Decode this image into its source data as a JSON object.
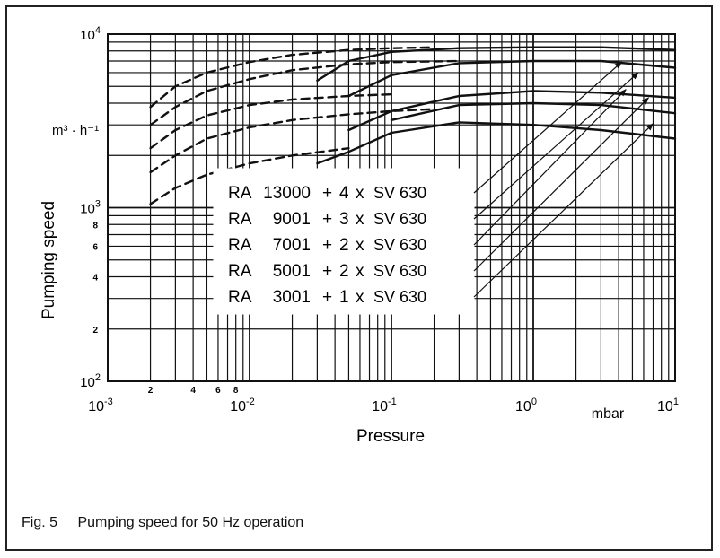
{
  "chart_data": {
    "type": "line",
    "title": "",
    "xscale": "log",
    "yscale": "log",
    "xlim": [
      0.001,
      10
    ],
    "ylim": [
      100,
      10000
    ],
    "xlabel": "Pressure",
    "x_unit": "mbar",
    "ylabel": "Pumping speed",
    "y_unit": "m³ · h⁻¹",
    "grid": true,
    "x_major_ticks": [
      {
        "value": 0.001,
        "base": "10",
        "exp": "-3"
      },
      {
        "value": 0.01,
        "base": "10",
        "exp": "-2"
      },
      {
        "value": 0.1,
        "base": "10",
        "exp": "-1"
      },
      {
        "value": 1,
        "base": "10",
        "exp": "0"
      },
      {
        "value": 10,
        "base": "10",
        "exp": "1"
      }
    ],
    "x_minor_tick_labels": [
      {
        "value": 0.002,
        "label": "2"
      },
      {
        "value": 0.004,
        "label": "4"
      },
      {
        "value": 0.006,
        "label": "6"
      },
      {
        "value": 0.008,
        "label": "8"
      }
    ],
    "y_major_ticks": [
      {
        "value": 100,
        "base": "10",
        "exp": "2"
      },
      {
        "value": 1000,
        "base": "10",
        "exp": "3"
      },
      {
        "value": 10000,
        "base": "10",
        "exp": "4"
      }
    ],
    "y_minor_tick_labels": [
      {
        "value": 200,
        "label": "2"
      },
      {
        "value": 400,
        "label": "4"
      },
      {
        "value": 600,
        "label": "6"
      },
      {
        "value": 800,
        "label": "8"
      }
    ],
    "legend": {
      "placement": "center",
      "rows": [
        {
          "pump": "RA",
          "model": "13000",
          "count": "4",
          "booster": "SV 630"
        },
        {
          "pump": "RA",
          "model": "9001",
          "count": "3",
          "booster": "SV 630"
        },
        {
          "pump": "RA",
          "model": "7001",
          "count": "2",
          "booster": "SV 630"
        },
        {
          "pump": "RA",
          "model": "5001",
          "count": "2",
          "booster": "SV 630"
        },
        {
          "pump": "RA",
          "model": "3001",
          "count": "1",
          "booster": "SV 630"
        }
      ]
    },
    "series": [
      {
        "name": "RA 13000 + 4 x SV 630",
        "solid": [
          [
            0.03,
            5400
          ],
          [
            0.05,
            7000
          ],
          [
            0.1,
            7900
          ],
          [
            0.3,
            8300
          ],
          [
            1,
            8400
          ],
          [
            3,
            8400
          ],
          [
            10,
            8100
          ]
        ],
        "dashed": [
          [
            0.002,
            3800
          ],
          [
            0.003,
            5000
          ],
          [
            0.005,
            6000
          ],
          [
            0.01,
            6900
          ],
          [
            0.02,
            7600
          ],
          [
            0.05,
            8100
          ],
          [
            0.1,
            8300
          ],
          [
            0.2,
            8400
          ]
        ]
      },
      {
        "name": "RA 9001 + 3 x SV 630",
        "solid": [
          [
            0.05,
            4400
          ],
          [
            0.1,
            5800
          ],
          [
            0.3,
            6800
          ],
          [
            1,
            7000
          ],
          [
            3,
            7000
          ],
          [
            10,
            6400
          ]
        ],
        "dashed": [
          [
            0.002,
            3000
          ],
          [
            0.003,
            3800
          ],
          [
            0.005,
            4700
          ],
          [
            0.01,
            5500
          ],
          [
            0.02,
            6200
          ],
          [
            0.05,
            6700
          ],
          [
            0.1,
            6900
          ],
          [
            0.3,
            7000
          ]
        ]
      },
      {
        "name": "RA 7001 + 2 x SV 630",
        "solid": [
          [
            0.05,
            2800
          ],
          [
            0.1,
            3600
          ],
          [
            0.3,
            4400
          ],
          [
            1,
            4700
          ],
          [
            3,
            4600
          ],
          [
            10,
            4300
          ]
        ],
        "dashed": [
          [
            0.002,
            2200
          ],
          [
            0.003,
            2800
          ],
          [
            0.005,
            3400
          ],
          [
            0.01,
            3900
          ],
          [
            0.02,
            4200
          ],
          [
            0.05,
            4400
          ],
          [
            0.1,
            4500
          ]
        ]
      },
      {
        "name": "RA 5001 + 2 x SV 630",
        "solid": [
          [
            0.1,
            3200
          ],
          [
            0.3,
            3900
          ],
          [
            1,
            4000
          ],
          [
            3,
            3900
          ],
          [
            10,
            3500
          ]
        ],
        "dashed": [
          [
            0.002,
            1600
          ],
          [
            0.003,
            2000
          ],
          [
            0.005,
            2500
          ],
          [
            0.01,
            2900
          ],
          [
            0.02,
            3200
          ],
          [
            0.05,
            3450
          ],
          [
            0.1,
            3600
          ],
          [
            0.2,
            3700
          ]
        ]
      },
      {
        "name": "RA 3001 + 1 x SV 630",
        "solid": [
          [
            0.03,
            1800
          ],
          [
            0.05,
            2100
          ],
          [
            0.1,
            2700
          ],
          [
            0.3,
            3100
          ],
          [
            1,
            3000
          ],
          [
            3,
            2800
          ],
          [
            10,
            2500
          ]
        ],
        "dashed": [
          [
            0.002,
            1050
          ],
          [
            0.003,
            1300
          ],
          [
            0.005,
            1550
          ],
          [
            0.01,
            1800
          ],
          [
            0.02,
            2000
          ],
          [
            0.05,
            2200
          ]
        ]
      }
    ],
    "leader_arrows": [
      {
        "to": [
          4.2,
          6900
        ]
      },
      {
        "to": [
          5.5,
          6000
        ]
      },
      {
        "to": [
          4.5,
          4800
        ]
      },
      {
        "to": [
          6.5,
          4300
        ]
      },
      {
        "to": [
          7.0,
          3050
        ]
      }
    ]
  },
  "caption": {
    "number": "Fig. 5",
    "text": "Pumping speed for 50 Hz operation"
  }
}
